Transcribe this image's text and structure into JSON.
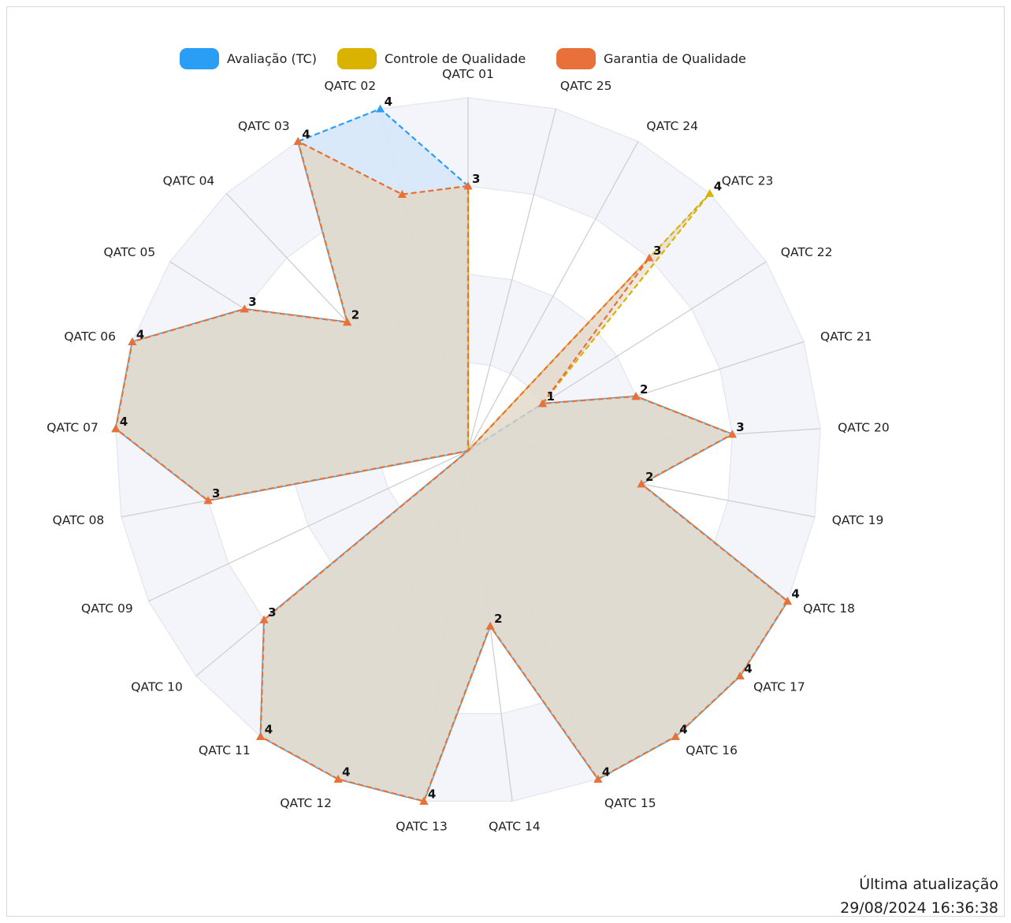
{
  "footer": {
    "label": "Última atualização",
    "timestamp": "29/08/2024 16:36:38"
  },
  "chart_data": {
    "type": "radar",
    "categories": [
      "QATC 01",
      "QATC 02",
      "QATC 03",
      "QATC 04",
      "QATC 05",
      "QATC 06",
      "QATC 07",
      "QATC 08",
      "QATC 09",
      "QATC 10",
      "QATC 11",
      "QATC 12",
      "QATC 13",
      "QATC 14",
      "QATC 15",
      "QATC 16",
      "QATC 17",
      "QATC 18",
      "QATC 19",
      "QATC 20",
      "QATC 21",
      "QATC 22",
      "QATC 23",
      "QATC 24",
      "QATC 25"
    ],
    "ylim": [
      0,
      4
    ],
    "legend_position": "top",
    "series": [
      {
        "name": "Avaliação (TC)",
        "color": "#2a9df4",
        "fill": "#d6e8f8",
        "values": [
          3,
          4,
          4,
          2,
          3,
          4,
          4,
          3,
          0,
          3,
          4,
          4,
          4,
          2,
          4,
          4,
          4,
          4,
          2,
          3,
          2,
          1,
          0,
          0,
          0
        ]
      },
      {
        "name": "Controle de Qualidade",
        "color": "#d9b300",
        "fill": "#ddd1bd",
        "values": [
          3,
          3,
          4,
          2,
          3,
          4,
          4,
          3,
          0,
          3,
          4,
          4,
          4,
          2,
          4,
          4,
          4,
          4,
          2,
          3,
          2,
          1,
          4,
          0,
          0
        ]
      },
      {
        "name": "Garantia de Qualidade",
        "color": "#e8703a",
        "fill": "#e2d8c8",
        "values": [
          3,
          3,
          4,
          2,
          3,
          4,
          4,
          3,
          0,
          3,
          4,
          4,
          4,
          2,
          4,
          4,
          4,
          4,
          2,
          3,
          2,
          1,
          3,
          0,
          0
        ]
      }
    ],
    "point_labels": [
      3,
      4,
      4,
      2,
      3,
      4,
      4,
      3,
      0,
      3,
      4,
      4,
      4,
      2,
      4,
      4,
      4,
      4,
      2,
      3,
      2,
      1,
      4,
      0,
      0
    ],
    "extra_point_labels": [
      {
        "category": "QATC 23",
        "value": 3
      }
    ]
  }
}
